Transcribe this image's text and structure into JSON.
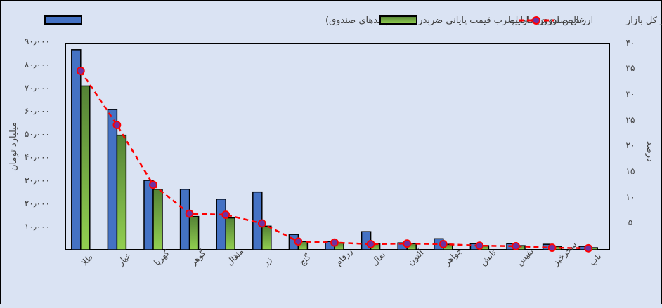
{
  "legend": {
    "fund_value": "ارزش صندوق  (حاصلضرب قیمت پایانی ضربدر سقف واحدهای صندوق)",
    "nav": "خالص ارزش داراییها",
    "market_share": "سهم از کل بازار"
  },
  "axes": {
    "left_label": "میلیارد تومان",
    "right_label": "درصد",
    "left_ticks": [
      "۱۰٫۰۰۰",
      "۲۰٫۰۰۰",
      "۳۰٫۰۰۰",
      "۴۰٫۰۰۰",
      "۵۰٫۰۰۰",
      "۶۰٫۰۰۰",
      "۷۰٫۰۰۰",
      "۸۰٫۰۰۰",
      "۹۰٫۰۰۰"
    ],
    "right_ticks": [
      "۵",
      "۱۰",
      "۱۵",
      "۲۰",
      "۲۵",
      "۳۰",
      "۳۵",
      "۴۰"
    ]
  },
  "colors": {
    "fund_value": "#4472c4",
    "nav_top": "#548235",
    "nav_bottom": "#92d050",
    "line": "#ff0000",
    "marker_fill": "#7030a0",
    "background": "#dae3f3"
  },
  "chart_data": {
    "type": "bar",
    "title": "",
    "xlabel": "",
    "ylabel": "میلیارد تومان",
    "y2label": "درصد",
    "ylim": [
      0,
      90000
    ],
    "y2lim": [
      0,
      40
    ],
    "grid": false,
    "legend_position": "top",
    "categories": [
      "طلا",
      "عیار",
      "کهربا",
      "گوهر",
      "مثقال",
      "زر",
      "گنج",
      "زرفام",
      "نفال",
      "آلتون",
      "جواهر",
      "تابش",
      "نفیس",
      "سحرخیز",
      "ناب"
    ],
    "series": [
      {
        "name": "ارزش صندوق (حاصلضرب قیمت پایانی ضربدر سقف واحدهای صندوق)",
        "type": "bar",
        "axis": "left",
        "values": [
          87300,
          61200,
          30300,
          26400,
          22100,
          25200,
          6700,
          3600,
          7900,
          3000,
          4800,
          2700,
          2700,
          2400,
          1500
        ]
      },
      {
        "name": "خالص ارزش داراییها",
        "type": "bar",
        "axis": "left",
        "values": [
          71500,
          50000,
          26400,
          14500,
          13900,
          10300,
          3600,
          3000,
          2700,
          2700,
          2400,
          1800,
          1800,
          1500,
          900
        ]
      },
      {
        "name": "سهم از کل بازار",
        "type": "line",
        "axis": "right",
        "values": [
          34.7,
          24.2,
          12.6,
          7.0,
          6.8,
          5.1,
          1.6,
          1.4,
          1.1,
          1.2,
          1.1,
          0.8,
          0.7,
          0.4,
          0.3
        ]
      }
    ]
  }
}
